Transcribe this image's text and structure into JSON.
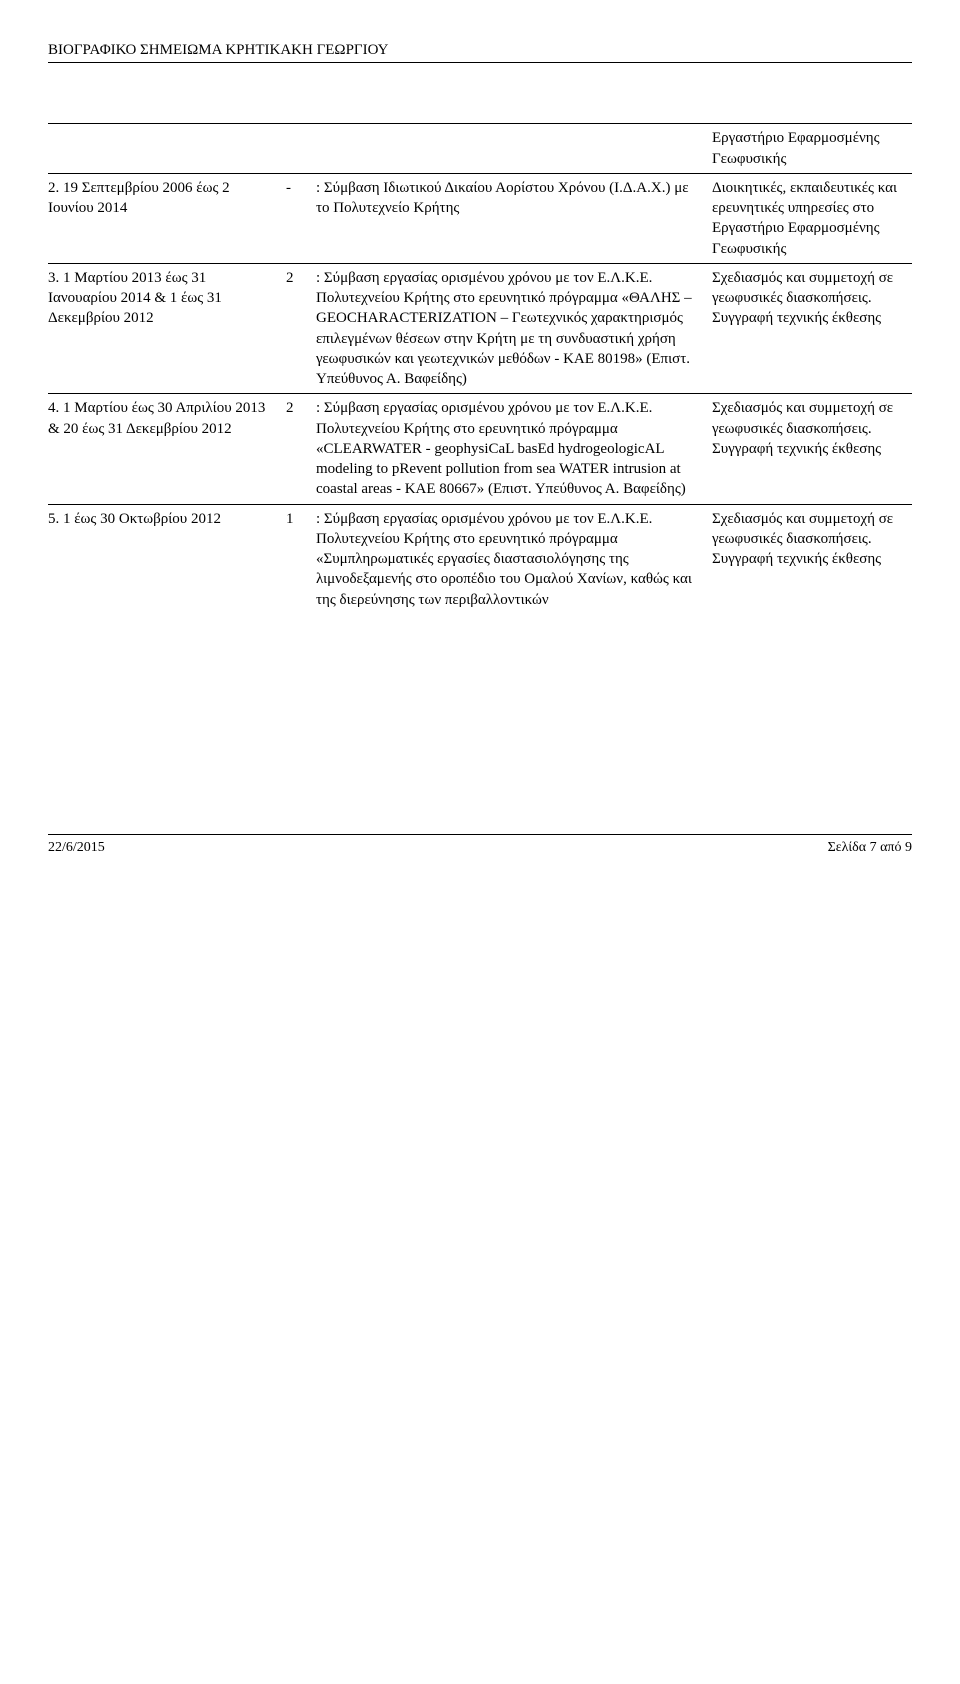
{
  "header": {
    "title": "ΒΙΟΓΡΑΦΙΚΟ ΣΗΜΕΙΩΜΑ ΚΡΗΤΙΚΑΚΗ ΓΕΩΡΓΙΟΥ"
  },
  "rows": [
    {
      "left": "",
      "num": "",
      "mid": "",
      "right": "Εργαστήριο Εφαρμοσμένης Γεωφυσικής"
    },
    {
      "left": "2. 19 Σεπτεμβρίου 2006 έως 2 Ιουνίου 2014",
      "num": "-",
      "mid": ": Σύμβαση Ιδιωτικού Δικαίου Αορίστου Χρόνου (Ι.Δ.Α.Χ.) με το Πολυτεχνείο Κρήτης",
      "right": "Διοικητικές, εκπαιδευτικές και ερευνητικές υπηρεσίες στο Εργαστήριο Εφαρμοσμένης Γεωφυσικής"
    },
    {
      "left": "3. 1 Μαρτίου 2013 έως 31 Ιανουαρίου 2014 & 1 έως 31 Δεκεμβρίου 2012",
      "num": "2",
      "mid": ": Σύμβαση εργασίας ορισμένου χρόνου με τον Ε.Λ.Κ.Ε. Πολυτεχνείου Κρήτης στο ερευνητικό πρόγραμμα «ΘΑΛΗΣ – GEOCHARACTERIZATION – Γεωτεχνικός χαρακτηρισμός επιλεγμένων θέσεων στην Κρήτη με τη συνδυαστική χρήση γεωφυσικών και γεωτεχνικών μεθόδων - ΚΑΕ 80198» (Επιστ. Υπεύθυνος Α. Βαφείδης)",
      "right": "Σχεδιασμός και συμμετοχή σε γεωφυσικές διασκοπήσεις. Συγγραφή τεχνικής έκθεσης"
    },
    {
      "left": "4. 1 Μαρτίου έως 30 Απριλίου 2013 & 20 έως 31 Δεκεμβρίου 2012",
      "num": "2",
      "mid": ": Σύμβαση εργασίας ορισμένου χρόνου με τον Ε.Λ.Κ.Ε. Πολυτεχνείου Κρήτης στο ερευνητικό πρόγραμμα «CLEARWATER - geophysiCaL basEd hydrogeologicAL modeling to pRevent pollution from sea WATER intrusion at coastal areas - ΚΑΕ 80667» (Επιστ. Υπεύθυνος Α. Βαφείδης)",
      "right": "Σχεδιασμός και συμμετοχή σε γεωφυσικές διασκοπήσεις. Συγγραφή τεχνικής έκθεσης"
    },
    {
      "left": "5. 1 έως 30 Οκτωβρίου 2012",
      "num": "1",
      "mid": ": Σύμβαση εργασίας ορισμένου χρόνου με τον Ε.Λ.Κ.Ε. Πολυτεχνείου Κρήτης στο ερευνητικό πρόγραμμα «Συμπληρωματικές εργασίες διαστασιολόγησης της λιμνοδεξαμενής στο οροπέδιο του Ομαλού Χανίων, καθώς και της διερεύνησης των περιβαλλοντικών",
      "right": "Σχεδιασμός και συμμετοχή σε γεωφυσικές διασκοπήσεις. Συγγραφή τεχνικής έκθεσης"
    }
  ],
  "footer": {
    "date": "22/6/2015",
    "page": "Σελίδα 7 από 9"
  }
}
